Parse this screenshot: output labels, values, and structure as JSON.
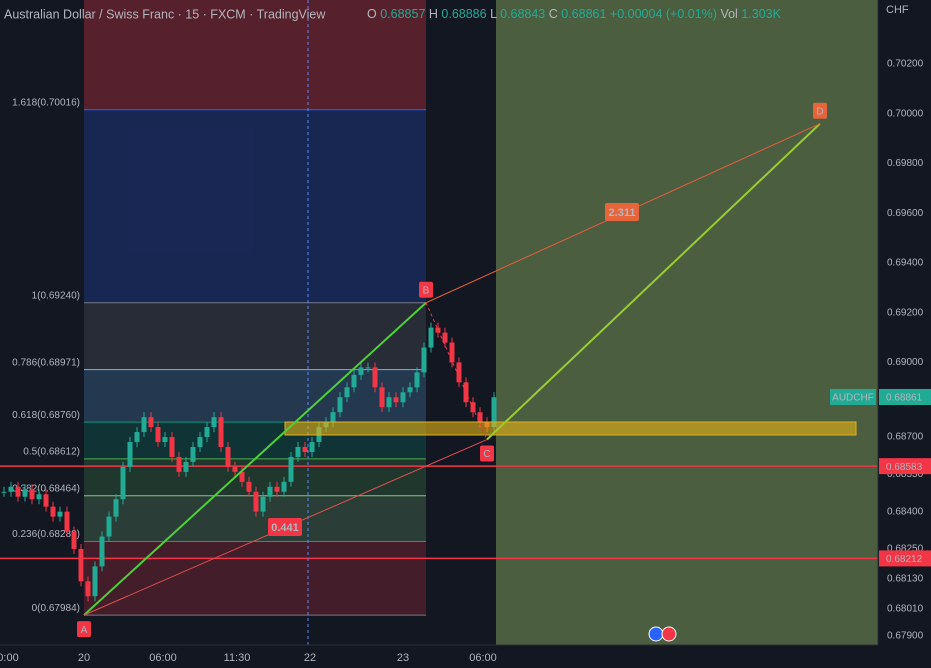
{
  "header": {
    "symbol": "Australian Dollar / Swiss Franc · 15 · FXCM · TradingView",
    "ohlc": [
      {
        "key": "O",
        "value": "0.68857"
      },
      {
        "key": "H",
        "value": "0.68886"
      },
      {
        "key": "L",
        "value": "0.68843"
      },
      {
        "key": "C",
        "value": "0.68861"
      }
    ],
    "change": "+0.00004 (+0.01%)",
    "volume_key": "Vol",
    "volume": "1.303K",
    "currency": "CHF"
  },
  "price_axis": [
    {
      "value": 0.702,
      "label": "0.70200"
    },
    {
      "value": 0.7,
      "label": "0.70000"
    },
    {
      "value": 0.698,
      "label": "0.69800"
    },
    {
      "value": 0.696,
      "label": "0.69600"
    },
    {
      "value": 0.694,
      "label": "0.69400"
    },
    {
      "value": 0.692,
      "label": "0.69200"
    },
    {
      "value": 0.69,
      "label": "0.69000"
    },
    {
      "value": 0.687,
      "label": "0.68700"
    },
    {
      "value": 0.6855,
      "label": "0.68550"
    },
    {
      "value": 0.684,
      "label": "0.68400"
    },
    {
      "value": 0.6825,
      "label": "0.68250"
    },
    {
      "value": 0.6813,
      "label": "0.68130"
    },
    {
      "value": 0.6801,
      "label": "0.68010"
    },
    {
      "value": 0.679,
      "label": "0.67900"
    }
  ],
  "time_axis": [
    "0:00",
    "20",
    "06:00",
    "11:30",
    "22",
    "23",
    "06:00"
  ],
  "fib_levels": [
    {
      "label": "1.618(0.70016)",
      "price": 0.70016,
      "color": "#2962ff"
    },
    {
      "label": "1(0.69240)",
      "price": 0.6924,
      "color": "#787b86"
    },
    {
      "label": "0.786(0.68971)",
      "price": 0.68971,
      "color": "#64b5f6"
    },
    {
      "label": "0.618(0.68760)",
      "price": 0.6876,
      "color": "#089981"
    },
    {
      "label": "0.5(0.68612)",
      "price": 0.68612,
      "color": "#4caf50"
    },
    {
      "label": "0.382(0.68464)",
      "price": 0.68464,
      "color": "#81c784"
    },
    {
      "label": "0.236(0.68280)",
      "price": 0.6828,
      "color": "#f23645"
    },
    {
      "label": "0(0.67984)",
      "price": 0.67984,
      "color": "#787b86"
    }
  ],
  "pattern_points": [
    {
      "label": "A",
      "price": 0.67984
    },
    {
      "label": "B",
      "price": 0.6924
    },
    {
      "label": "C",
      "price": 0.6869
    },
    {
      "label": "D",
      "price": 0.6996
    }
  ],
  "ratios": [
    "0.441",
    "2.311"
  ],
  "price_tags": [
    {
      "label": "AUDCHF",
      "value": "0.68861",
      "price": 0.68861,
      "color": "#22ab94"
    },
    {
      "label": "",
      "value": "0.68583",
      "price": 0.68583,
      "color": "#f23645"
    },
    {
      "label": "",
      "value": "0.68212",
      "price": 0.68212,
      "color": "#f23645"
    }
  ],
  "closes": [
    0.6848,
    0.685,
    0.6846,
    0.6849,
    0.6845,
    0.6847,
    0.6842,
    0.6838,
    0.684,
    0.6832,
    0.6825,
    0.6812,
    0.6806,
    0.6818,
    0.683,
    0.6838,
    0.6845,
    0.6858,
    0.6868,
    0.6872,
    0.6878,
    0.6874,
    0.6868,
    0.687,
    0.6862,
    0.6856,
    0.686,
    0.6866,
    0.687,
    0.6874,
    0.6878,
    0.6866,
    0.6858,
    0.6856,
    0.6852,
    0.6848,
    0.684,
    0.6846,
    0.685,
    0.6848,
    0.6852,
    0.6862,
    0.6866,
    0.6864,
    0.6868,
    0.6874,
    0.6876,
    0.688,
    0.6886,
    0.689,
    0.6895,
    0.6898,
    0.6898,
    0.689,
    0.6882,
    0.6886,
    0.6884,
    0.6888,
    0.689,
    0.6896,
    0.6906,
    0.6914,
    0.6912,
    0.6908,
    0.69,
    0.6892,
    0.6884,
    0.688,
    0.6876,
    0.6874,
    0.6886
  ]
}
